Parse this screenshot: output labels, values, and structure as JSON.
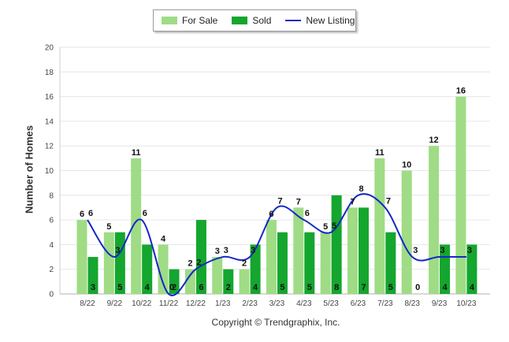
{
  "chart_data": {
    "type": "bar",
    "title": "",
    "xlabel": "",
    "ylabel": "Number of Homes",
    "ylim": [
      0,
      20
    ],
    "yticks": [
      0,
      2,
      4,
      6,
      8,
      10,
      12,
      14,
      16,
      18,
      20
    ],
    "grid": true,
    "legend_position": "top",
    "categories": [
      "8/22",
      "9/22",
      "10/22",
      "11/22",
      "12/22",
      "1/23",
      "2/23",
      "3/23",
      "4/23",
      "5/23",
      "6/23",
      "7/23",
      "8/23",
      "9/23",
      "10/23"
    ],
    "series": [
      {
        "name": "For Sale",
        "kind": "bar",
        "color": "#9fdc85",
        "values": [
          6,
          5,
          11,
          4,
          2,
          3,
          2,
          6,
          7,
          5,
          7,
          11,
          10,
          12,
          16
        ]
      },
      {
        "name": "Sold",
        "kind": "bar",
        "color": "#14a62e",
        "values": [
          3,
          5,
          4,
          2,
          6,
          2,
          4,
          5,
          5,
          8,
          7,
          5,
          0,
          4,
          4
        ]
      },
      {
        "name": "New Listing",
        "kind": "line",
        "color": "#1428c8",
        "values": [
          6,
          3,
          6,
          0,
          2,
          3,
          3,
          7,
          6,
          5,
          8,
          7,
          3,
          3,
          3
        ]
      }
    ]
  },
  "footer": {
    "copyright": "Copyright © Trendgraphix, Inc."
  }
}
